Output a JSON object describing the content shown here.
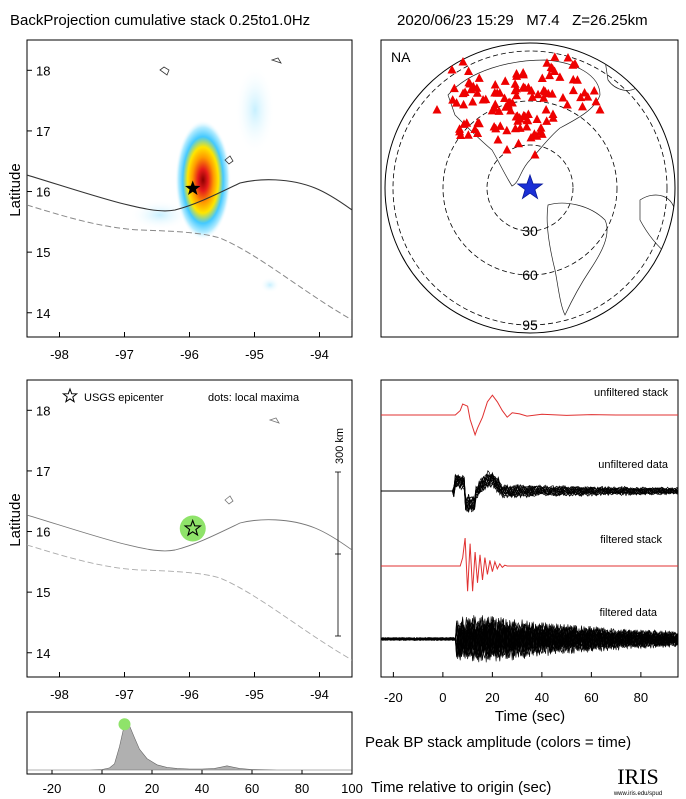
{
  "header": {
    "title": "BackProjection cumulative stack 0.25to1.0Hz",
    "event": "2020/06/23 15:29   M7.4   Z=26.25km"
  },
  "colors": {
    "station": "#ee0000",
    "epicenter_star_global": "#1a2fd6",
    "maxima_dot": "#8fe36a",
    "trace_stack": "#e03030",
    "trace_data": "#000000",
    "histogram_fill": "#b0b0b0"
  },
  "panels": {
    "map": {
      "ylabel": "Latitude",
      "x_ticks": [
        "-98",
        "-97",
        "-96",
        "-95",
        "-94"
      ],
      "y_ticks": [
        "18",
        "17",
        "16",
        "15",
        "14"
      ]
    },
    "globe": {
      "label": "NA",
      "ring_labels": [
        "30",
        "60",
        "95"
      ]
    },
    "maxima": {
      "ylabel": "Latitude",
      "legend_star": "USGS epicenter",
      "legend_dots": "dots: local maxima",
      "scale_label": "300 km",
      "x_ticks": [
        "-98",
        "-97",
        "-96",
        "-95",
        "-94"
      ],
      "y_ticks": [
        "18",
        "17",
        "16",
        "15",
        "14"
      ]
    },
    "traces": {
      "labels": [
        "unfiltered stack",
        "unfiltered data",
        "filtered stack",
        "filtered data"
      ],
      "xlabel": "Time (sec)",
      "x_ticks": [
        "-20",
        "0",
        "20",
        "40",
        "60",
        "80"
      ]
    },
    "peak": {
      "title": "Peak BP stack amplitude (colors = time)",
      "xlabel": "Time relative to origin (sec)",
      "x_ticks": [
        "-20",
        "0",
        "20",
        "40",
        "60",
        "80",
        "100"
      ]
    }
  },
  "logo": {
    "text": "IRIS",
    "url": "www.iris.edu/spud"
  },
  "chart_data": [
    {
      "type": "heatmap",
      "name": "backprojection",
      "xlim": [
        -98.5,
        -93.5
      ],
      "ylim": [
        13.6,
        18.5
      ],
      "epicenter": {
        "lon": -95.95,
        "lat": 16.05
      },
      "peak": {
        "lon": -95.95,
        "lat": 16.1
      }
    },
    {
      "type": "scatter",
      "name": "local-maxima",
      "xlim": [
        -98.5,
        -93.5
      ],
      "ylim": [
        13.6,
        18.5
      ],
      "epicenter": {
        "lon": -95.95,
        "lat": 16.05
      },
      "maxima": [
        {
          "lon": -95.95,
          "lat": 16.05
        }
      ]
    },
    {
      "type": "line",
      "name": "seismograms",
      "xlim": [
        -25,
        95
      ],
      "series": [
        {
          "name": "unfiltered stack",
          "x": [
            -25,
            5,
            7,
            8,
            10,
            11,
            13,
            14,
            16,
            18,
            20,
            22,
            24,
            26,
            28,
            31,
            34,
            40,
            50,
            60,
            70,
            80,
            95
          ],
          "y": [
            0,
            0,
            0.2,
            0.5,
            0.4,
            -0.2,
            -0.9,
            -0.6,
            -0.1,
            0.6,
            0.9,
            0.6,
            0.2,
            -0.1,
            0.1,
            0.05,
            -0.05,
            0.03,
            -0.02,
            0.02,
            0,
            0,
            0
          ]
        },
        {
          "name": "filtered stack",
          "x": [
            -25,
            7,
            8,
            9,
            10,
            11,
            12,
            13,
            14,
            15,
            16,
            17,
            18,
            19,
            20,
            21,
            22,
            23,
            24,
            25,
            26,
            30,
            40,
            95
          ],
          "y": [
            0,
            0,
            0.3,
            1,
            -0.9,
            0.8,
            -0.9,
            0.5,
            -0.6,
            0.4,
            -0.5,
            0.3,
            -0.3,
            0.2,
            -0.2,
            0.15,
            -0.1,
            0.08,
            -0.05,
            0.03,
            0,
            0,
            0,
            0
          ]
        }
      ]
    },
    {
      "type": "area",
      "name": "peak-stack-amplitude",
      "xlim": [
        -30,
        100
      ],
      "ylim": [
        0,
        1
      ],
      "x": [
        -30,
        -5,
        0,
        3,
        5,
        7,
        9,
        11,
        13,
        15,
        18,
        22,
        26,
        30,
        35,
        40,
        45,
        48,
        50,
        52,
        55,
        60,
        70,
        80,
        100
      ],
      "y": [
        0,
        0,
        0.01,
        0.04,
        0.12,
        0.45,
        0.88,
        0.85,
        0.62,
        0.4,
        0.22,
        0.1,
        0.05,
        0.03,
        0.02,
        0.02,
        0.03,
        0.06,
        0.08,
        0.06,
        0.03,
        0.01,
        0,
        0,
        0
      ],
      "peak_marker": {
        "x": 9,
        "y": 0.88
      }
    }
  ]
}
